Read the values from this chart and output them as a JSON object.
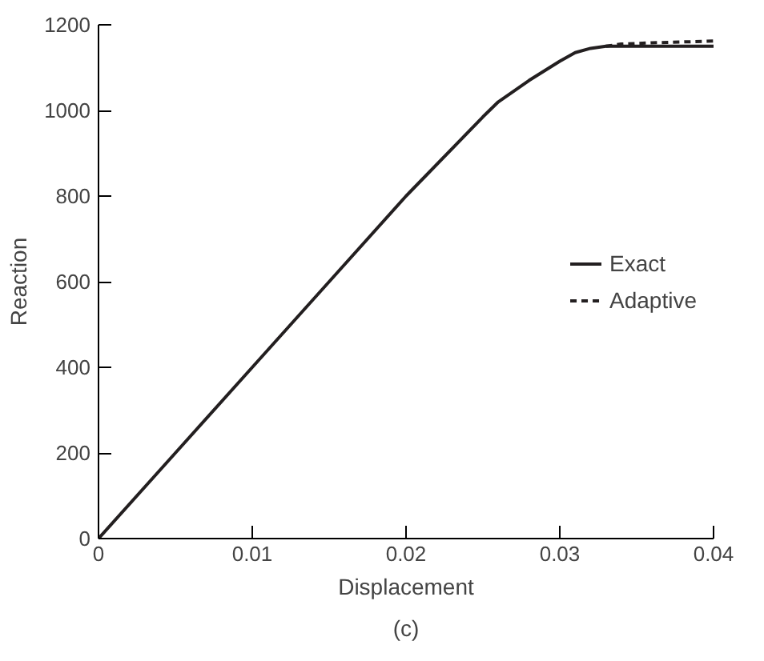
{
  "chart_data": {
    "type": "line",
    "xlabel": "Displacement",
    "ylabel": "Reaction",
    "annotations": [
      "(c)"
    ],
    "xlim": [
      0,
      0.04
    ],
    "ylim": [
      0,
      1200
    ],
    "xticks": [
      0,
      0.01,
      0.02,
      0.03,
      0.04
    ],
    "yticks": [
      0,
      200,
      400,
      600,
      800,
      1000,
      1200
    ],
    "grid": false,
    "legend": "right",
    "marker": "none",
    "series": [
      {
        "name": "Exact",
        "color": "#231f20",
        "line_style": "solid",
        "x": [
          0,
          0.005,
          0.01,
          0.015,
          0.02,
          0.025,
          0.026,
          0.028,
          0.03,
          0.031,
          0.032,
          0.033,
          0.034,
          0.036,
          0.038,
          0.04
        ],
        "values": [
          0,
          200,
          400,
          600,
          800,
          985,
          1020,
          1070,
          1115,
          1135,
          1145,
          1150,
          1150,
          1150,
          1150,
          1150
        ]
      },
      {
        "name": "Adaptive",
        "color": "#231f20",
        "line_style": "dashed",
        "x": [
          0.033,
          0.034,
          0.036,
          0.038,
          0.04
        ],
        "values": [
          1150,
          1155,
          1158,
          1160,
          1162
        ]
      }
    ]
  }
}
